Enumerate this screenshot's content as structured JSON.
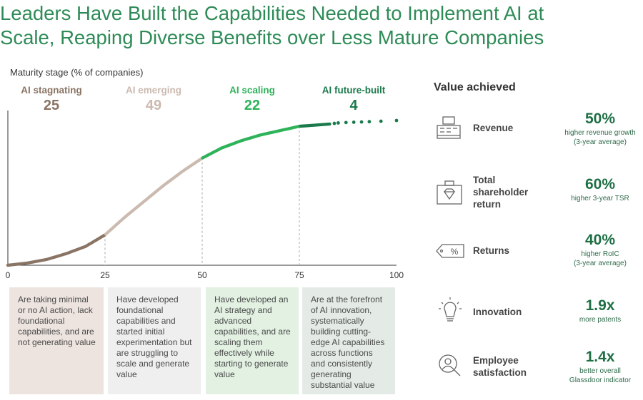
{
  "title_line1": "Leaders Have Built the Capabilities Needed to Implement AI at",
  "title_line2": "Scale, Reaping Diverse Benefits over Less Mature Companies",
  "ylabel": "Maturity stage (% of companies)",
  "stages": [
    {
      "name": "AI stagnating",
      "pct": "25",
      "color": "#8a7464",
      "desc": "Are taking minimal or no AI action, lack foundational capabilities, and are not generating value",
      "bg": "#ede4df"
    },
    {
      "name": "AI emerging",
      "pct": "49",
      "color": "#cbbab0",
      "desc": "Have developed foundational capabilities and started initial experimentation but are struggling to scale and generate value",
      "bg": "#efefef"
    },
    {
      "name": "AI scaling",
      "pct": "22",
      "color": "#2fb35a",
      "desc": "Have developed an AI strategy and advanced capabilities, and are scaling them effectively while starting to generate value",
      "bg": "#e2f1e2"
    },
    {
      "name": "AI future-built",
      "pct": "4",
      "color": "#1a7a4c",
      "desc": "Are at the forefront of AI innovation, systematically building cutting-edge AI capabilities across functions and consistently generating substantial value",
      "bg": "#e4ebe6"
    }
  ],
  "value_title": "Value achieved",
  "values": [
    {
      "label_lines": [
        "Revenue"
      ],
      "big": "50%",
      "sub_lines": [
        "higher revenue growth",
        "(3-year average)"
      ],
      "icon": "cash-register-icon"
    },
    {
      "label_lines": [
        "Total",
        "shareholder",
        "return"
      ],
      "big": "60%",
      "sub_lines": [
        "higher 3-year TSR"
      ],
      "icon": "briefcase-diamond-icon"
    },
    {
      "label_lines": [
        "Returns"
      ],
      "big": "40%",
      "sub_lines": [
        "higher RoIC",
        "(3-year average)"
      ],
      "icon": "percent-tag-icon"
    },
    {
      "label_lines": [
        "Innovation"
      ],
      "big": "1.9x",
      "sub_lines": [
        "more patents"
      ],
      "icon": "lightbulb-icon"
    },
    {
      "label_lines": [
        "Employee",
        "satisfaction"
      ],
      "big": "1.4x",
      "sub_lines": [
        "better overall",
        "Glassdoor indicator"
      ],
      "icon": "person-search-icon"
    }
  ],
  "chart_data": {
    "type": "scatter",
    "title": "Maturity stage (% of companies)",
    "x_ticks": [
      "0",
      "25",
      "50",
      "75",
      "100"
    ],
    "xlim": [
      0,
      100
    ],
    "ylim": [
      0,
      100
    ],
    "stage_boundaries": [
      25,
      50,
      75
    ],
    "curve": [
      [
        0,
        0
      ],
      [
        5,
        1.5
      ],
      [
        10,
        4
      ],
      [
        15,
        8
      ],
      [
        20,
        13
      ],
      [
        25,
        21
      ],
      [
        30,
        33
      ],
      [
        35,
        44
      ],
      [
        40,
        55
      ],
      [
        45,
        65
      ],
      [
        50,
        74
      ],
      [
        55,
        81
      ],
      [
        60,
        86
      ],
      [
        65,
        90
      ],
      [
        70,
        93
      ],
      [
        75,
        96
      ],
      [
        80,
        97
      ],
      [
        85,
        98
      ],
      [
        90,
        98.5
      ],
      [
        95,
        99
      ],
      [
        100,
        100
      ]
    ],
    "sparse_points": [
      [
        84,
        98
      ],
      [
        85,
        98.3
      ],
      [
        87,
        98.6
      ],
      [
        89,
        98.8
      ],
      [
        91,
        99
      ],
      [
        93,
        99.2
      ],
      [
        96,
        99.5
      ],
      [
        100,
        100
      ]
    ]
  }
}
